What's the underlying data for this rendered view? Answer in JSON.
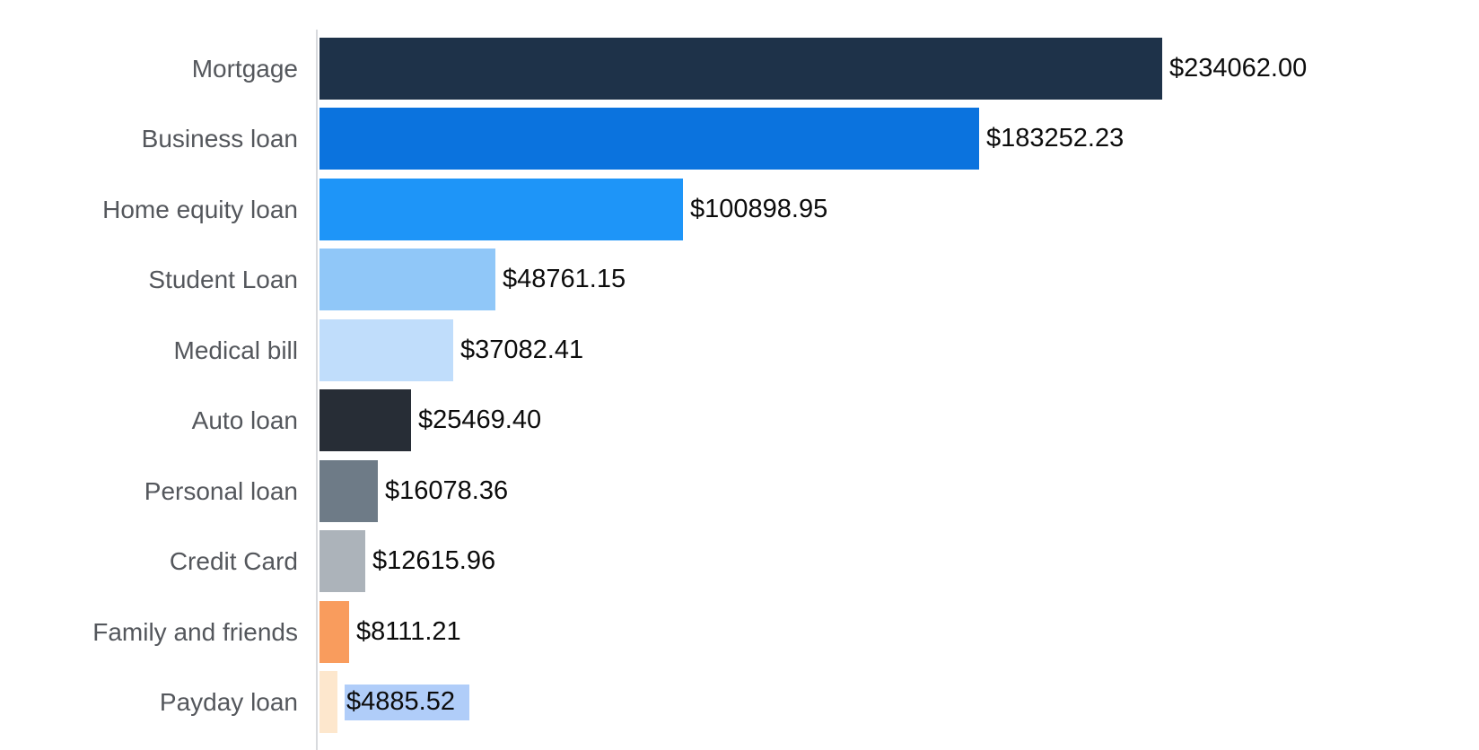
{
  "chart_data": {
    "type": "bar",
    "orientation": "horizontal",
    "title": "",
    "xlabel": "",
    "ylabel": "",
    "categories": [
      "Mortgage",
      "Business loan",
      "Home equity loan",
      "Student Loan",
      "Medical bill",
      "Auto loan",
      "Personal loan",
      "Credit Card",
      "Family and friends",
      "Payday loan"
    ],
    "values": [
      234062.0,
      183252.23,
      100898.95,
      48761.15,
      37082.41,
      25469.4,
      16078.36,
      12615.96,
      8111.21,
      4885.52
    ],
    "value_labels": [
      "$234062.00",
      "$183252.23",
      "$100898.95",
      "$48761.15",
      "$37082.41",
      "$25469.40",
      "$16078.36",
      "$12615.96",
      "$8111.21",
      "$4885.52"
    ],
    "bar_colors": [
      "#1e3249",
      "#0b73de",
      "#1e95f8",
      "#90c7f8",
      "#c0ddfb",
      "#272d36",
      "#6e7b87",
      "#acb3ba",
      "#f99c5d",
      "#fde7cd"
    ],
    "xlim": [
      0,
      234062
    ],
    "grid": false,
    "legend": false
  },
  "selection": {
    "selected_value_index": 9
  },
  "colors": {
    "axis_line": "#d8dadd",
    "category_label": "#54575c",
    "value_label": "#0c0c0c",
    "selection_highlight": "#b0cdf9",
    "background": "#ffffff"
  }
}
